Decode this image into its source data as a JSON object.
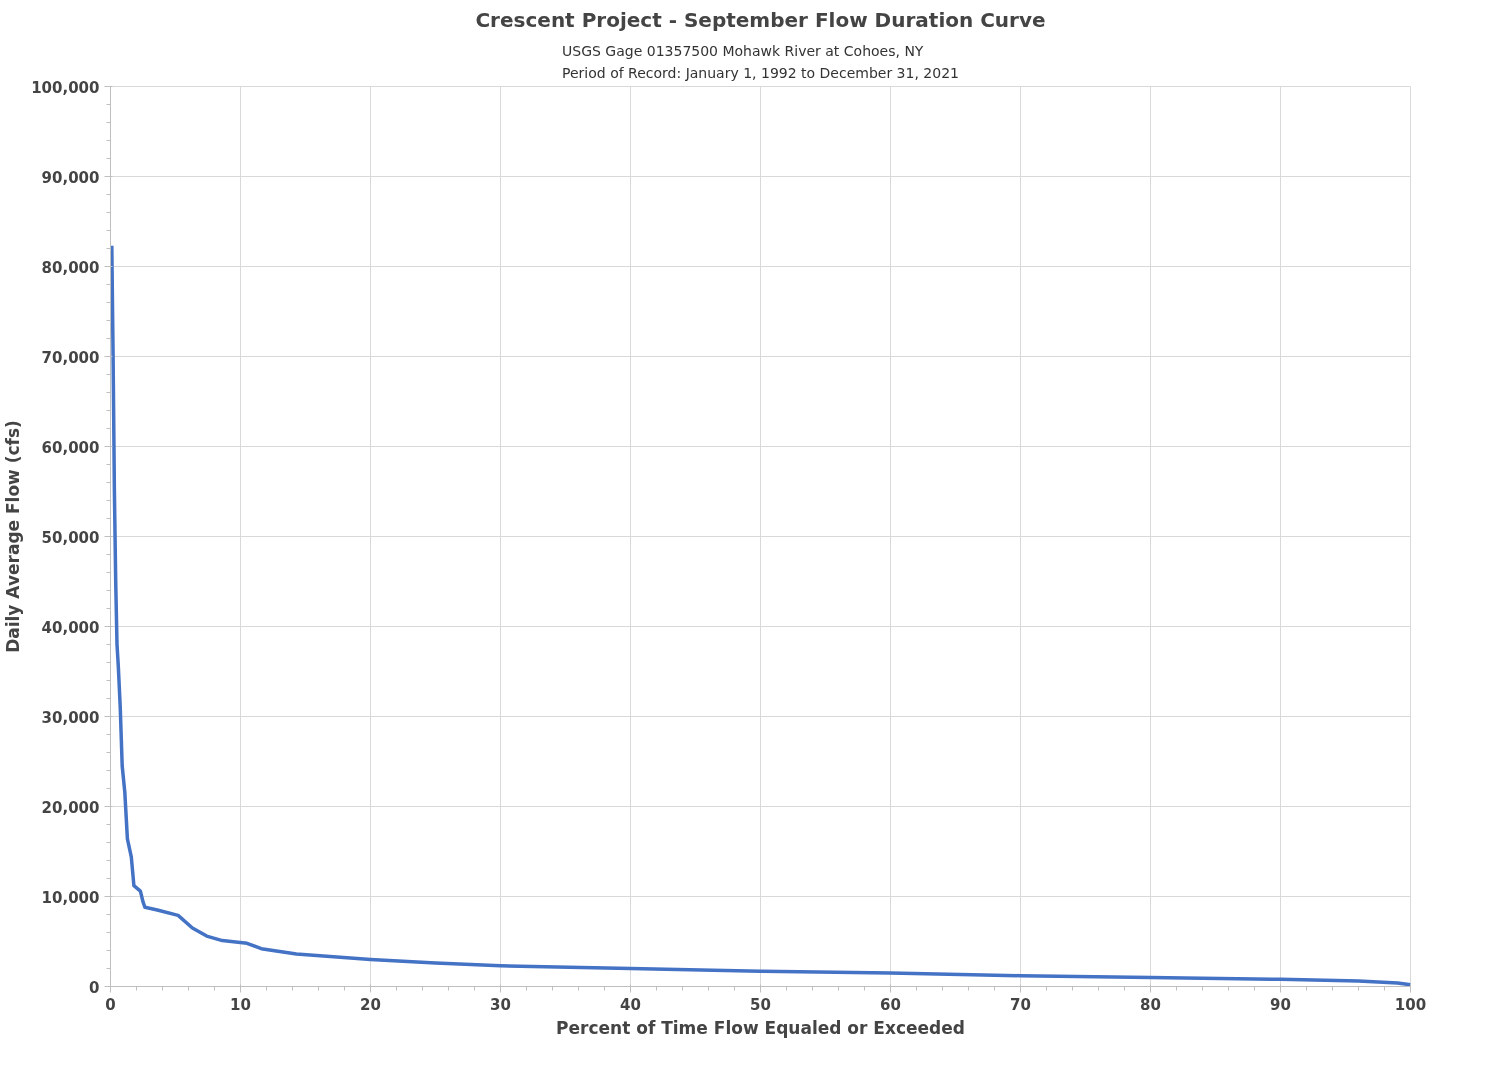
{
  "chart_data": {
    "type": "line",
    "title": "Crescent Project - September Flow Duration Curve",
    "subtitle": "USGS Gage 01357500 Mohawk River at Cohoes, NY\nPeriod of Record: January 1, 1992 to December 31, 2021",
    "xlabel": "Percent of Time Flow Equaled or Exceeded",
    "ylabel": "Daily Average Flow (cfs)",
    "series": [
      {
        "color": "#4472c4",
        "x": [
          0.1,
          0.2,
          0.3,
          0.4,
          0.5,
          0.6,
          0.75,
          0.9,
          1.1,
          1.3,
          1.6,
          1.8,
          2.3,
          2.5,
          2.65,
          3.6,
          5.2,
          6.3,
          7.4,
          8.6,
          10.5,
          11.6,
          14.3,
          20,
          25,
          30,
          40,
          50,
          60,
          70,
          80,
          90,
          96,
          99,
          100
        ],
        "values": [
          82300,
          70000,
          55000,
          45000,
          38000,
          35600,
          31000,
          24500,
          21600,
          16400,
          14400,
          11200,
          10600,
          9400,
          8800,
          8500,
          7900,
          6500,
          5600,
          5100,
          4800,
          4200,
          3600,
          3000,
          2600,
          2300,
          2000,
          1700,
          1500,
          1200,
          1000,
          800,
          600,
          400,
          200
        ]
      }
    ],
    "xlim": [
      0,
      100
    ],
    "ylim": [
      0,
      100000
    ],
    "xticks": [
      0,
      10,
      20,
      30,
      40,
      50,
      60,
      70,
      80,
      90,
      100
    ],
    "yticks": [
      {
        "value": 0,
        "label": "0"
      },
      {
        "value": 10000,
        "label": "10,000"
      },
      {
        "value": 20000,
        "label": "20,000"
      },
      {
        "value": 30000,
        "label": "30,000"
      },
      {
        "value": 40000,
        "label": "40,000"
      },
      {
        "value": 50000,
        "label": "50,000"
      },
      {
        "value": 60000,
        "label": "60,000"
      },
      {
        "value": 70000,
        "label": "70,000"
      },
      {
        "value": 80000,
        "label": "80,000"
      },
      {
        "value": 90000,
        "label": "90,000"
      },
      {
        "value": 100000,
        "label": "100,000"
      }
    ],
    "grid": true,
    "marker": "none",
    "line_style": "solid"
  }
}
